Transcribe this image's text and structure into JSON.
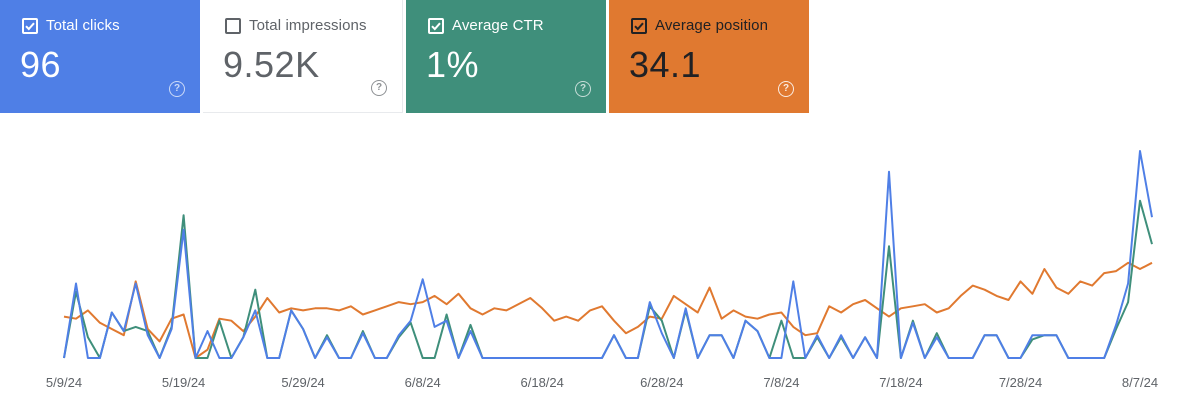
{
  "metrics": {
    "clicks": {
      "label": "Total clicks",
      "value": "96",
      "checked": true,
      "color": "#4f7fe6"
    },
    "impressions": {
      "label": "Total impressions",
      "value": "9.52K",
      "checked": false,
      "color": "#5f6368"
    },
    "ctr": {
      "label": "Average CTR",
      "value": "1%",
      "checked": true,
      "color": "#3f8f7b"
    },
    "position": {
      "label": "Average position",
      "value": "34.1",
      "checked": true,
      "color": "#e07930"
    }
  },
  "help_glyph": "?",
  "chart_data": {
    "type": "line",
    "title": "",
    "xlabel": "",
    "ylabel": "",
    "x_tick_labels": [
      "5/9/24",
      "5/19/24",
      "5/29/24",
      "6/8/24",
      "6/18/24",
      "6/28/24",
      "7/8/24",
      "7/18/24",
      "7/28/24",
      "8/7/24"
    ],
    "x_tick_indices": [
      0,
      10,
      20,
      30,
      40,
      50,
      60,
      70,
      80,
      90
    ],
    "ylim": [
      0,
      100
    ],
    "series": [
      {
        "name": "Average position",
        "color": "#e07930",
        "values": [
          20,
          19,
          23,
          17,
          14,
          11,
          37,
          14,
          8,
          19,
          21,
          0,
          4,
          19,
          18,
          13,
          20,
          29,
          22,
          24,
          23,
          24,
          24,
          23,
          25,
          21,
          23,
          25,
          27,
          26,
          27,
          30,
          26,
          31,
          24,
          21,
          24,
          23,
          26,
          29,
          24,
          18,
          20,
          18,
          23,
          25,
          18,
          12,
          15,
          20,
          19,
          30,
          26,
          22,
          34,
          19,
          23,
          20,
          19,
          21,
          22,
          15,
          11,
          12,
          25,
          22,
          26,
          28,
          24,
          20,
          24,
          25,
          26,
          22,
          24,
          30,
          35,
          33,
          30,
          28,
          37,
          31,
          43,
          34,
          31,
          37,
          35,
          41,
          42,
          46,
          43,
          46
        ]
      },
      {
        "name": "Average CTR",
        "color": "#3f8f7b",
        "values": [
          0,
          32,
          10,
          0,
          22,
          13,
          15,
          13,
          0,
          15,
          69,
          0,
          0,
          18,
          0,
          10,
          33,
          0,
          0,
          23,
          14,
          0,
          11,
          0,
          0,
          13,
          0,
          0,
          10,
          17,
          0,
          0,
          21,
          0,
          16,
          0,
          0,
          0,
          0,
          0,
          0,
          0,
          0,
          0,
          0,
          0,
          11,
          0,
          0,
          25,
          18,
          0,
          23,
          0,
          11,
          11,
          0,
          18,
          13,
          0,
          18,
          0,
          0,
          10,
          0,
          10,
          0,
          10,
          0,
          54,
          0,
          18,
          0,
          12,
          0,
          0,
          0,
          11,
          11,
          0,
          0,
          9,
          11,
          11,
          0,
          0,
          0,
          0,
          14,
          27,
          76,
          55
        ]
      },
      {
        "name": "Total clicks",
        "color": "#4f7fe6",
        "values": [
          0,
          36,
          0,
          0,
          22,
          13,
          36,
          11,
          0,
          14,
          62,
          0,
          13,
          0,
          0,
          10,
          23,
          0,
          0,
          23,
          14,
          0,
          10,
          0,
          0,
          12,
          0,
          0,
          11,
          18,
          38,
          15,
          18,
          0,
          13,
          0,
          0,
          0,
          0,
          0,
          0,
          0,
          0,
          0,
          0,
          0,
          11,
          0,
          0,
          27,
          12,
          0,
          24,
          0,
          11,
          11,
          0,
          18,
          13,
          0,
          0,
          37,
          0,
          11,
          0,
          11,
          0,
          10,
          0,
          90,
          0,
          17,
          0,
          10,
          0,
          0,
          0,
          11,
          11,
          0,
          0,
          11,
          11,
          11,
          0,
          0,
          0,
          0,
          16,
          36,
          100,
          68
        ]
      }
    ]
  }
}
